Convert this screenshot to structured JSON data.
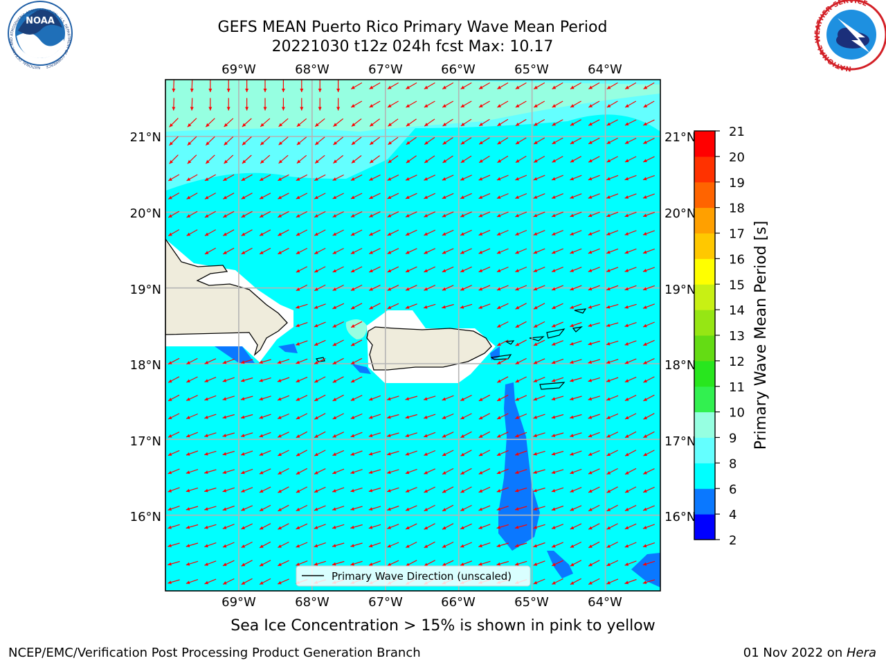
{
  "title": {
    "line1": "GEFS MEAN Puerto Rico Primary Wave Mean Period",
    "line2": "20221030 t12z 024h fcst   Max: 10.17"
  },
  "logos": {
    "noaa_text": "NOAA",
    "noaa_ring_text": "NATIONAL OCEANIC AND ATMOSPHERIC ADMINISTRATION · U.S. DEPARTMENT OF COMMERCE",
    "nws_ring_text": "NATIONAL WEATHER SERVICE"
  },
  "map": {
    "lon_labels": [
      "69°W",
      "68°W",
      "67°W",
      "66°W",
      "65°W",
      "64°W"
    ],
    "lat_labels": [
      "21°N",
      "20°N",
      "19°N",
      "18°N",
      "17°N",
      "16°N"
    ],
    "lon_values": [
      -69,
      -68,
      -67,
      -66,
      -65,
      -64
    ],
    "lat_values": [
      21,
      20,
      19,
      18,
      17,
      16
    ],
    "lon_range": [
      -70,
      -63.25
    ],
    "lat_range": [
      15.0,
      21.75
    ],
    "legend_label": "Primary Wave Direction (unscaled)",
    "vector_color": "#ff0000",
    "land_color": "#efecdc",
    "grid": true
  },
  "colorbar": {
    "label": "Primary Wave Mean Period [s]",
    "ticks": [
      2,
      4,
      6,
      8,
      9,
      10,
      11,
      12,
      13,
      14,
      15,
      16,
      17,
      18,
      19,
      20,
      21
    ],
    "colors": [
      "#0000ff",
      "#0a78ff",
      "#00ffff",
      "#64ffff",
      "#96ffe1",
      "#32f050",
      "#28e61e",
      "#64dc14",
      "#96e614",
      "#c8f014",
      "#ffff00",
      "#ffc800",
      "#ffa000",
      "#ff6400",
      "#ff3200",
      "#ff0000"
    ]
  },
  "caption": "Sea Ice Concentration > 15% is shown in pink to yellow",
  "footer": {
    "left": "NCEP/EMC/Verification Post Processing Product Generation Branch",
    "right_date": "01 Nov 2022 on ",
    "right_host": "Hera"
  }
}
